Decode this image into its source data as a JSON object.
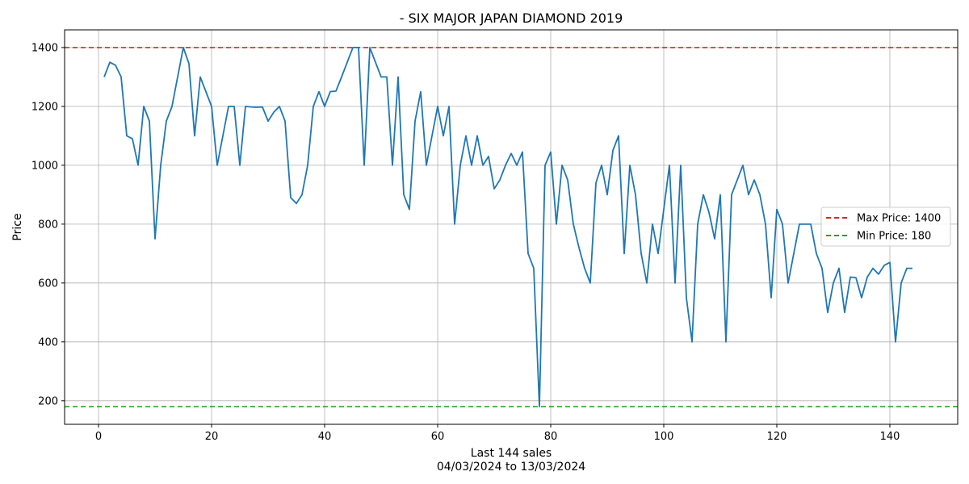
{
  "chart_data": {
    "type": "line",
    "title": "- SIX MAJOR JAPAN DIAMOND 2019",
    "xlabel": "Last 144 sales",
    "xlabel_sub": "04/03/2024 to 13/03/2024",
    "ylabel": "Price",
    "xlim": [
      -6,
      152
    ],
    "ylim": [
      120,
      1460
    ],
    "xticks": [
      0,
      20,
      40,
      60,
      80,
      100,
      120,
      140
    ],
    "yticks": [
      200,
      400,
      600,
      800,
      1000,
      1200,
      1400
    ],
    "grid": true,
    "legend_position": "right",
    "series": [
      {
        "color": "#1f77b4",
        "x": [
          1,
          2,
          3,
          4,
          5,
          6,
          7,
          8,
          9,
          10,
          11,
          12,
          13,
          14,
          15,
          16,
          17,
          18,
          19,
          20,
          21,
          22,
          23,
          24,
          25,
          26,
          27,
          28,
          29,
          30,
          31,
          32,
          33,
          34,
          35,
          36,
          37,
          38,
          39,
          40,
          41,
          42,
          43,
          44,
          45,
          46,
          47,
          48,
          49,
          50,
          51,
          52,
          53,
          54,
          55,
          56,
          57,
          58,
          59,
          60,
          61,
          62,
          63,
          64,
          65,
          66,
          67,
          68,
          69,
          70,
          71,
          72,
          73,
          74,
          75,
          76,
          77,
          78,
          79,
          80,
          81,
          82,
          83,
          84,
          85,
          86,
          87,
          88,
          89,
          90,
          91,
          92,
          93,
          94,
          95,
          96,
          97,
          98,
          99,
          100,
          101,
          102,
          103,
          104,
          105,
          106,
          107,
          108,
          109,
          110,
          111,
          112,
          113,
          114,
          115,
          116,
          117,
          118,
          119,
          120,
          121,
          122,
          123,
          124,
          125,
          126,
          127,
          128,
          129,
          130,
          131,
          132,
          133,
          134,
          135,
          136,
          137,
          138,
          139,
          140,
          141,
          142,
          143,
          144
        ],
        "values": [
          1300,
          1350,
          1340,
          1300,
          1100,
          1090,
          1000,
          1200,
          1150,
          750,
          1000,
          1150,
          1200,
          1300,
          1400,
          1345,
          1100,
          1300,
          1250,
          1200,
          1000,
          1100,
          1200,
          1200,
          1000,
          1200,
          1198,
          1197,
          1198,
          1150,
          1180,
          1200,
          1150,
          890,
          870,
          900,
          1000,
          1200,
          1250,
          1200,
          1250,
          1252,
          1300,
          1350,
          1400,
          1400,
          1000,
          1400,
          1350,
          1300,
          1300,
          1000,
          1300,
          900,
          850,
          1150,
          1250,
          1000,
          1100,
          1200,
          1100,
          1200,
          800,
          1000,
          1100,
          1000,
          1100,
          1000,
          1030,
          920,
          950,
          1000,
          1040,
          1000,
          1045,
          700,
          650,
          180,
          1000,
          1045,
          800,
          1000,
          950,
          800,
          720,
          650,
          600,
          940,
          1000,
          900,
          1050,
          1100,
          700,
          1000,
          900,
          700,
          600,
          800,
          700,
          850,
          1000,
          600,
          1000,
          550,
          400,
          800,
          900,
          840,
          750,
          900,
          400,
          900,
          950,
          1000,
          900,
          950,
          900,
          800,
          550,
          850,
          800,
          600,
          700,
          800,
          800,
          800,
          700,
          650,
          500,
          600,
          650,
          500,
          620,
          618,
          550,
          620,
          650,
          630,
          660,
          670,
          400,
          600,
          650,
          650
        ]
      }
    ],
    "reference_lines": [
      {
        "label": "Max Price: 1400",
        "value": 1400,
        "color": "#d62728"
      },
      {
        "label": "Min Price: 180",
        "value": 180,
        "color": "#2ca02c"
      }
    ]
  }
}
